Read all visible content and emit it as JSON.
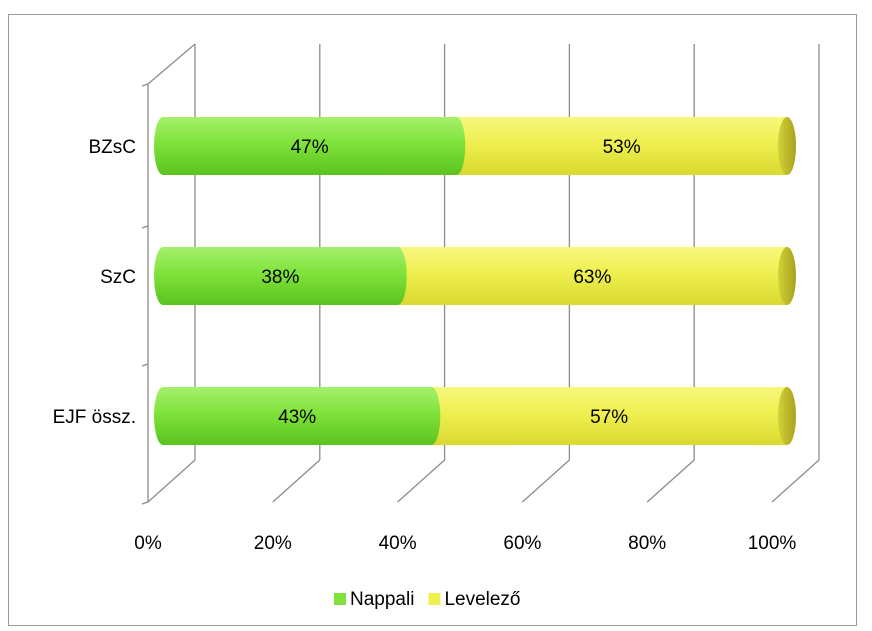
{
  "chart_data": {
    "type": "bar",
    "orientation": "horizontal",
    "stacked": "percent",
    "categories": [
      "BZsC",
      "SzC",
      "EJF össz."
    ],
    "series": [
      {
        "name": "Nappali",
        "color": "#7FE33B",
        "values": [
          47,
          38,
          43
        ],
        "labels": [
          "47%",
          "38%",
          "43%"
        ]
      },
      {
        "name": "Levelező",
        "color": "#EFEF50",
        "values": [
          53,
          63,
          57
        ],
        "labels": [
          "53%",
          "63%",
          "57%"
        ]
      }
    ],
    "x_ticks": [
      "0%",
      "20%",
      "40%",
      "60%",
      "80%",
      "100%"
    ],
    "xlim": [
      0,
      100
    ],
    "grid": true,
    "legend": "bottom"
  }
}
